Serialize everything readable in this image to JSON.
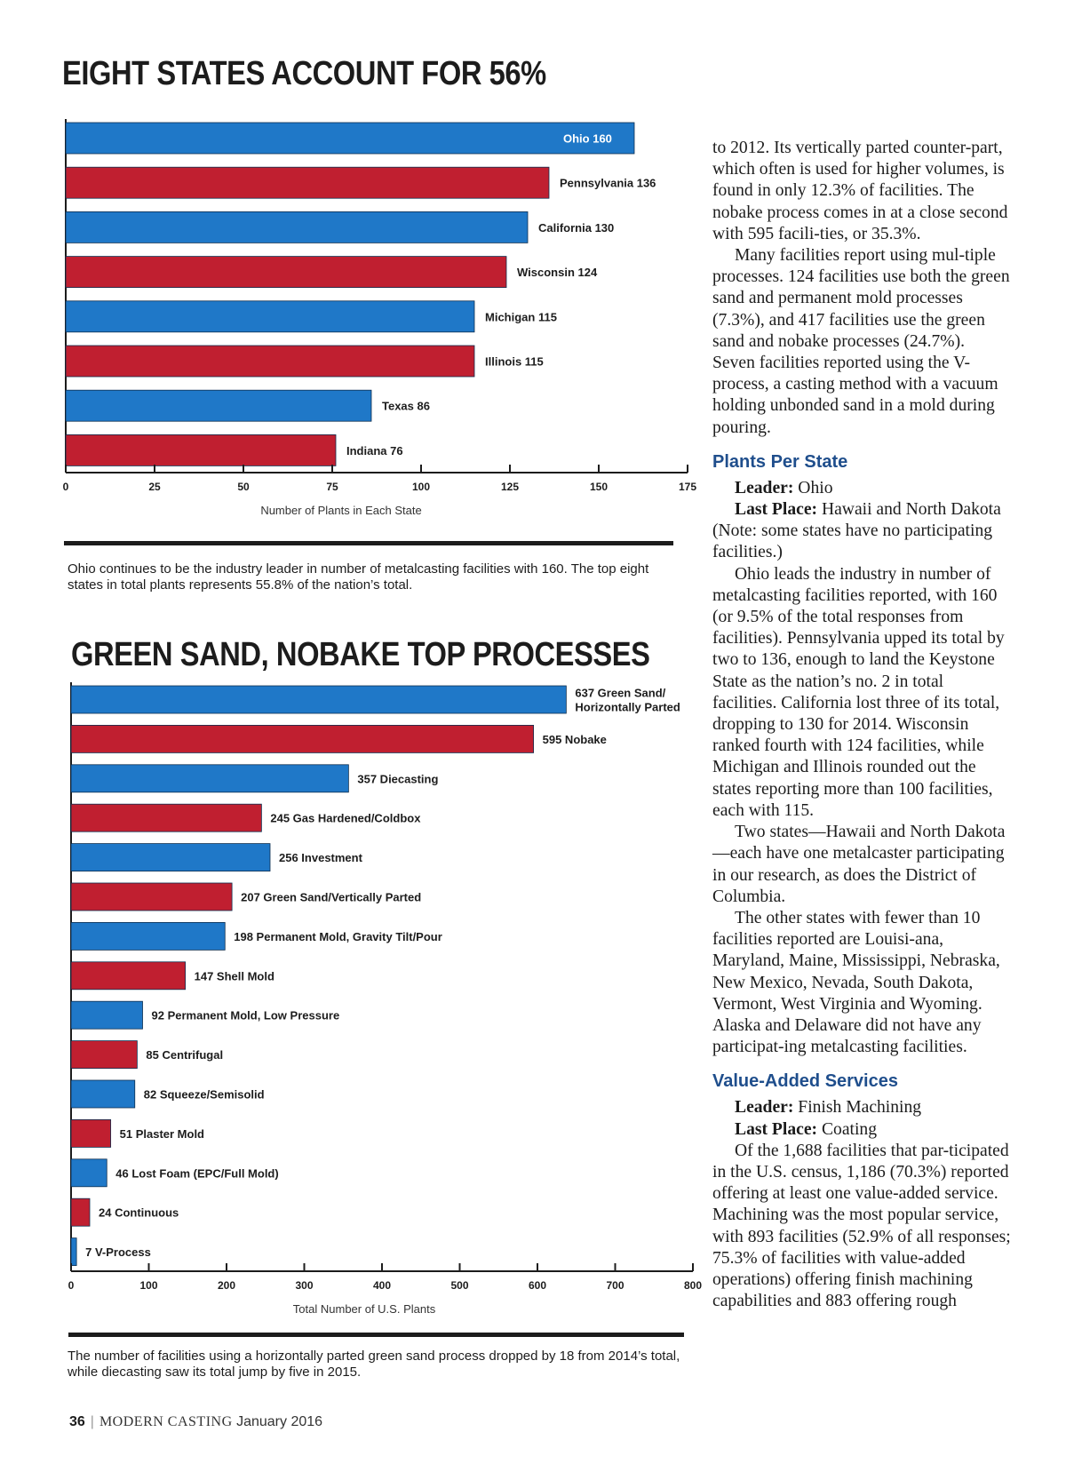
{
  "colors": {
    "blue": "#1f78c8",
    "red": "#c01f30",
    "heading": "#1f4e8c",
    "axis": "#1c1c1c"
  },
  "chart_data": [
    {
      "type": "bar",
      "orientation": "horizontal",
      "title": "EIGHT STATES ACCOUNT FOR 56%",
      "xlabel": "Number of Plants in Each State",
      "xlim": [
        0,
        175
      ],
      "xticks": [
        0,
        25,
        50,
        75,
        100,
        125,
        150,
        175
      ],
      "categories": [
        "Ohio",
        "Pennsylvania",
        "California",
        "Wisconsin",
        "Michigan",
        "Illinois",
        "Texas",
        "Indiana"
      ],
      "values": [
        160,
        136,
        130,
        124,
        115,
        115,
        86,
        76
      ],
      "labels": [
        "Ohio 160",
        "Pennsylvania 136",
        "California 130",
        "Wisconsin 124",
        "Michigan 115",
        "Illinois 115",
        "Texas 86",
        "Indiana 76"
      ],
      "colors": [
        "blue",
        "red",
        "blue",
        "red",
        "blue",
        "red",
        "blue",
        "red"
      ],
      "caption": "Ohio continues to be the industry leader in number of metalcasting facilities with 160. The top eight states in total plants represents 55.8% of the nation’s total."
    },
    {
      "type": "bar",
      "orientation": "horizontal",
      "title": "GREEN SAND, NOBAKE TOP PROCESSES",
      "xlabel": "Total Number of U.S. Plants",
      "xlim": [
        0,
        800
      ],
      "xticks": [
        0,
        100,
        200,
        300,
        400,
        500,
        600,
        700,
        800
      ],
      "categories": [
        "Green Sand/ Horizontally Parted",
        "Nobake",
        "Diecasting",
        "Gas Hardened/Coldbox",
        "Investment",
        "Green Sand/Vertically Parted",
        "Permanent Mold, Gravity Tilt/Pour",
        "Shell Mold",
        "Permanent Mold, Low Pressure",
        "Centrifugal",
        "Squeeze/Semisolid",
        "Plaster Mold",
        "Lost Foam (EPC/Full Mold)",
        "Continuous",
        "V-Process"
      ],
      "values": [
        637,
        595,
        357,
        245,
        256,
        207,
        198,
        147,
        92,
        85,
        82,
        51,
        46,
        24,
        7
      ],
      "labels": [
        [
          "637 Green Sand/",
          "Horizontally Parted"
        ],
        [
          "595 Nobake"
        ],
        [
          "357 Diecasting"
        ],
        [
          "245 Gas Hardened/Coldbox"
        ],
        [
          "256 Investment"
        ],
        [
          "207 Green Sand/Vertically Parted"
        ],
        [
          "198 Permanent Mold, Gravity Tilt/Pour"
        ],
        [
          "147 Shell Mold"
        ],
        [
          "92 Permanent Mold, Low Pressure"
        ],
        [
          "85 Centrifugal"
        ],
        [
          "82 Squeeze/Semisolid"
        ],
        [
          "51 Plaster Mold"
        ],
        [
          "46 Lost Foam (EPC/Full Mold)"
        ],
        [
          "24 Continuous"
        ],
        [
          "7 V-Process"
        ]
      ],
      "colors": [
        "blue",
        "red",
        "blue",
        "red",
        "blue",
        "red",
        "blue",
        "red",
        "blue",
        "red",
        "blue",
        "red",
        "blue",
        "red",
        "blue"
      ],
      "caption": "The number of facilities using a horizontally parted green sand process dropped by 18 from 2014’s total, while diecasting saw its total jump by five in 2015."
    }
  ],
  "article": {
    "p1": "to 2012. Its vertically parted counter-part, which often is used for higher volumes, is found in only 12.3% of facilities. The nobake process comes in at a close second with 595 facili-ties, or 35.3%.",
    "p2": "Many facilities report using mul-tiple processes. 124 facilities use both the green sand and permanent mold processes (7.3%), and 417 facilities use the green sand and nobake processes (24.7%). Seven facilities reported using the V-process, a casting method with a vacuum holding unbonded sand in a mold during pouring.",
    "section1": {
      "heading": "Plants Per State",
      "leader_label": "Leader:",
      "leader_value": "Ohio",
      "last_label": "Last Place:",
      "last_value": "Hawaii and North Dakota (Note: some states have no participating facilities.)",
      "p1": "Ohio leads the industry in number of metalcasting facilities reported, with 160 (or 9.5% of the total responses from facilities). Pennsylvania upped its total by two to 136, enough to land the Keystone State as the nation’s no. 2 in total facilities. California lost three of its total, dropping to 130 for 2014. Wisconsin ranked fourth with 124 facilities, while Michigan and Illinois rounded out the states reporting more than 100 facilities, each with 115.",
      "p2": "Two states—Hawaii and North Dakota—each have one metalcaster participating in our research, as does the District of Columbia.",
      "p3": "The other states with fewer than 10 facilities reported are Louisi-ana, Maryland, Maine, Mississippi, Nebraska, New Mexico, Nevada, South Dakota, Vermont, West Virginia and Wyoming. Alaska and Delaware did not have any participat-ing metalcasting facilities."
    },
    "section2": {
      "heading": "Value-Added Services",
      "leader_label": "Leader:",
      "leader_value": "Finish Machining",
      "last_label": "Last Place:",
      "last_value": "Coating",
      "p1": "Of the 1,688 facilities that par-ticipated in the U.S. census, 1,186 (70.3%) reported offering at least one value-added service. Machining was the most popular service, with 893 facilities (52.9% of all responses; 75.3% of facilities with value-added operations) offering finish machining capabilities and 883 offering rough"
    }
  },
  "footer": {
    "page": "36",
    "separator": "|",
    "magazine": "MODERN CASTING",
    "issue": "January 2016"
  }
}
